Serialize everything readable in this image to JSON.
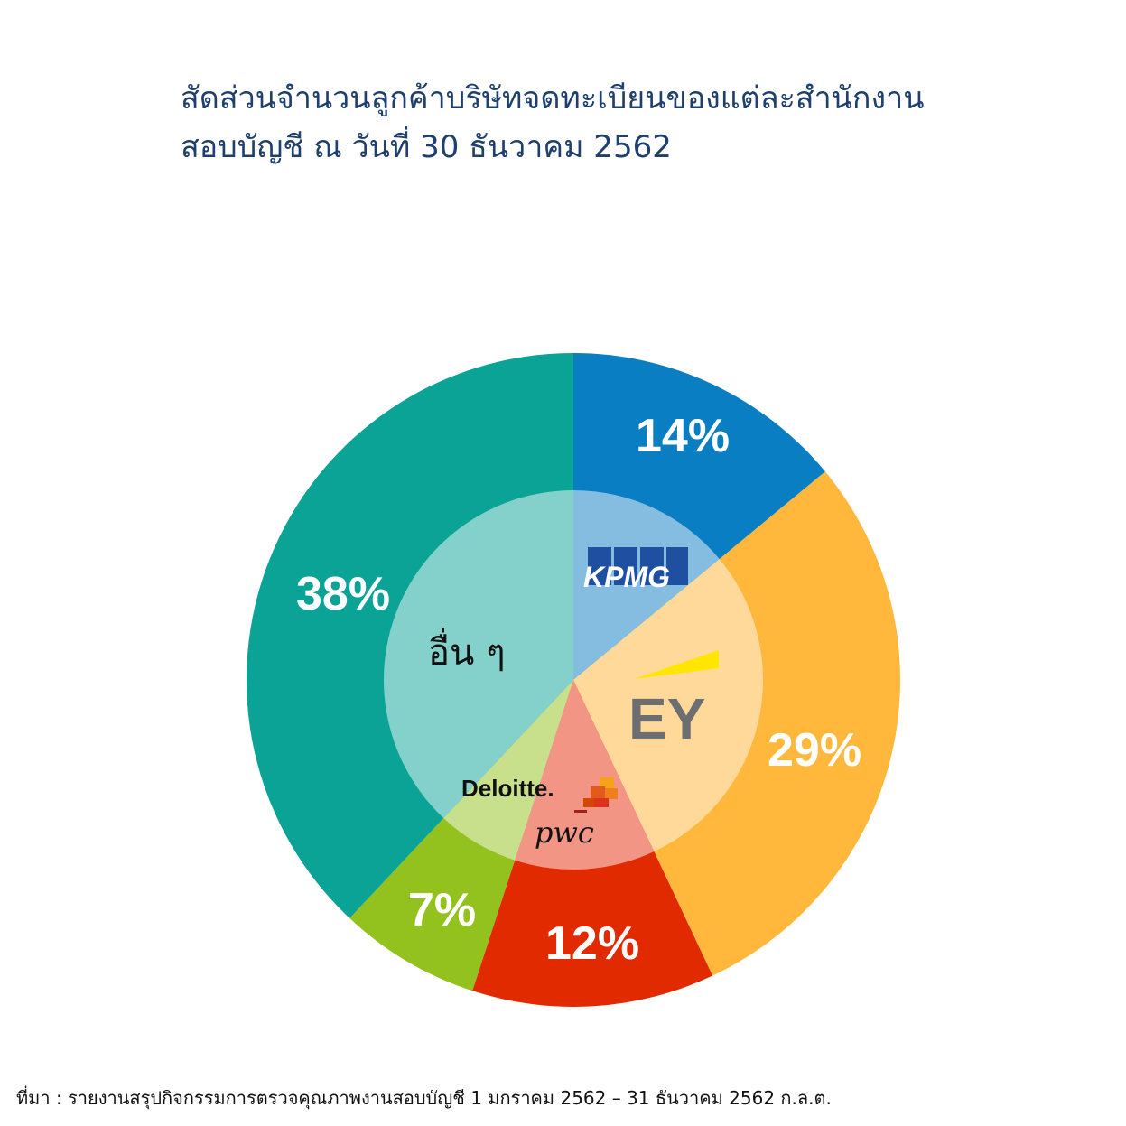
{
  "title_lines": [
    "สัดส่วนจำนวนลูกค้าบริษัทจดทะเบียนของแต่ละสำนักงาน",
    "สอบบัญชี ณ วันที่ 30 ธันวาคม 2562"
  ],
  "source": "ที่มา : รายงานสรุปกิจกรรมการตรวจคุณภาพงานสอบบัญชี 1 มกราคม 2562 – 31 ธันวาคม 2562  ก.ล.ต.",
  "chart_data": {
    "type": "pie",
    "categories": [
      "KPMG",
      "EY",
      "pwc",
      "Deloitte.",
      "อื่น ๆ"
    ],
    "values": [
      14,
      29,
      12,
      7,
      38
    ],
    "value_labels": [
      "14%",
      "29%",
      "12%",
      "7%",
      "38%"
    ],
    "colors": [
      "#0a7ec2",
      "#ffb83b",
      "#e22a00",
      "#93c11d",
      "#0aa396"
    ],
    "inner_colors": [
      "#85bde0",
      "#ffd999",
      "#f29585",
      "#c8df8c",
      "#83d1ca"
    ]
  }
}
